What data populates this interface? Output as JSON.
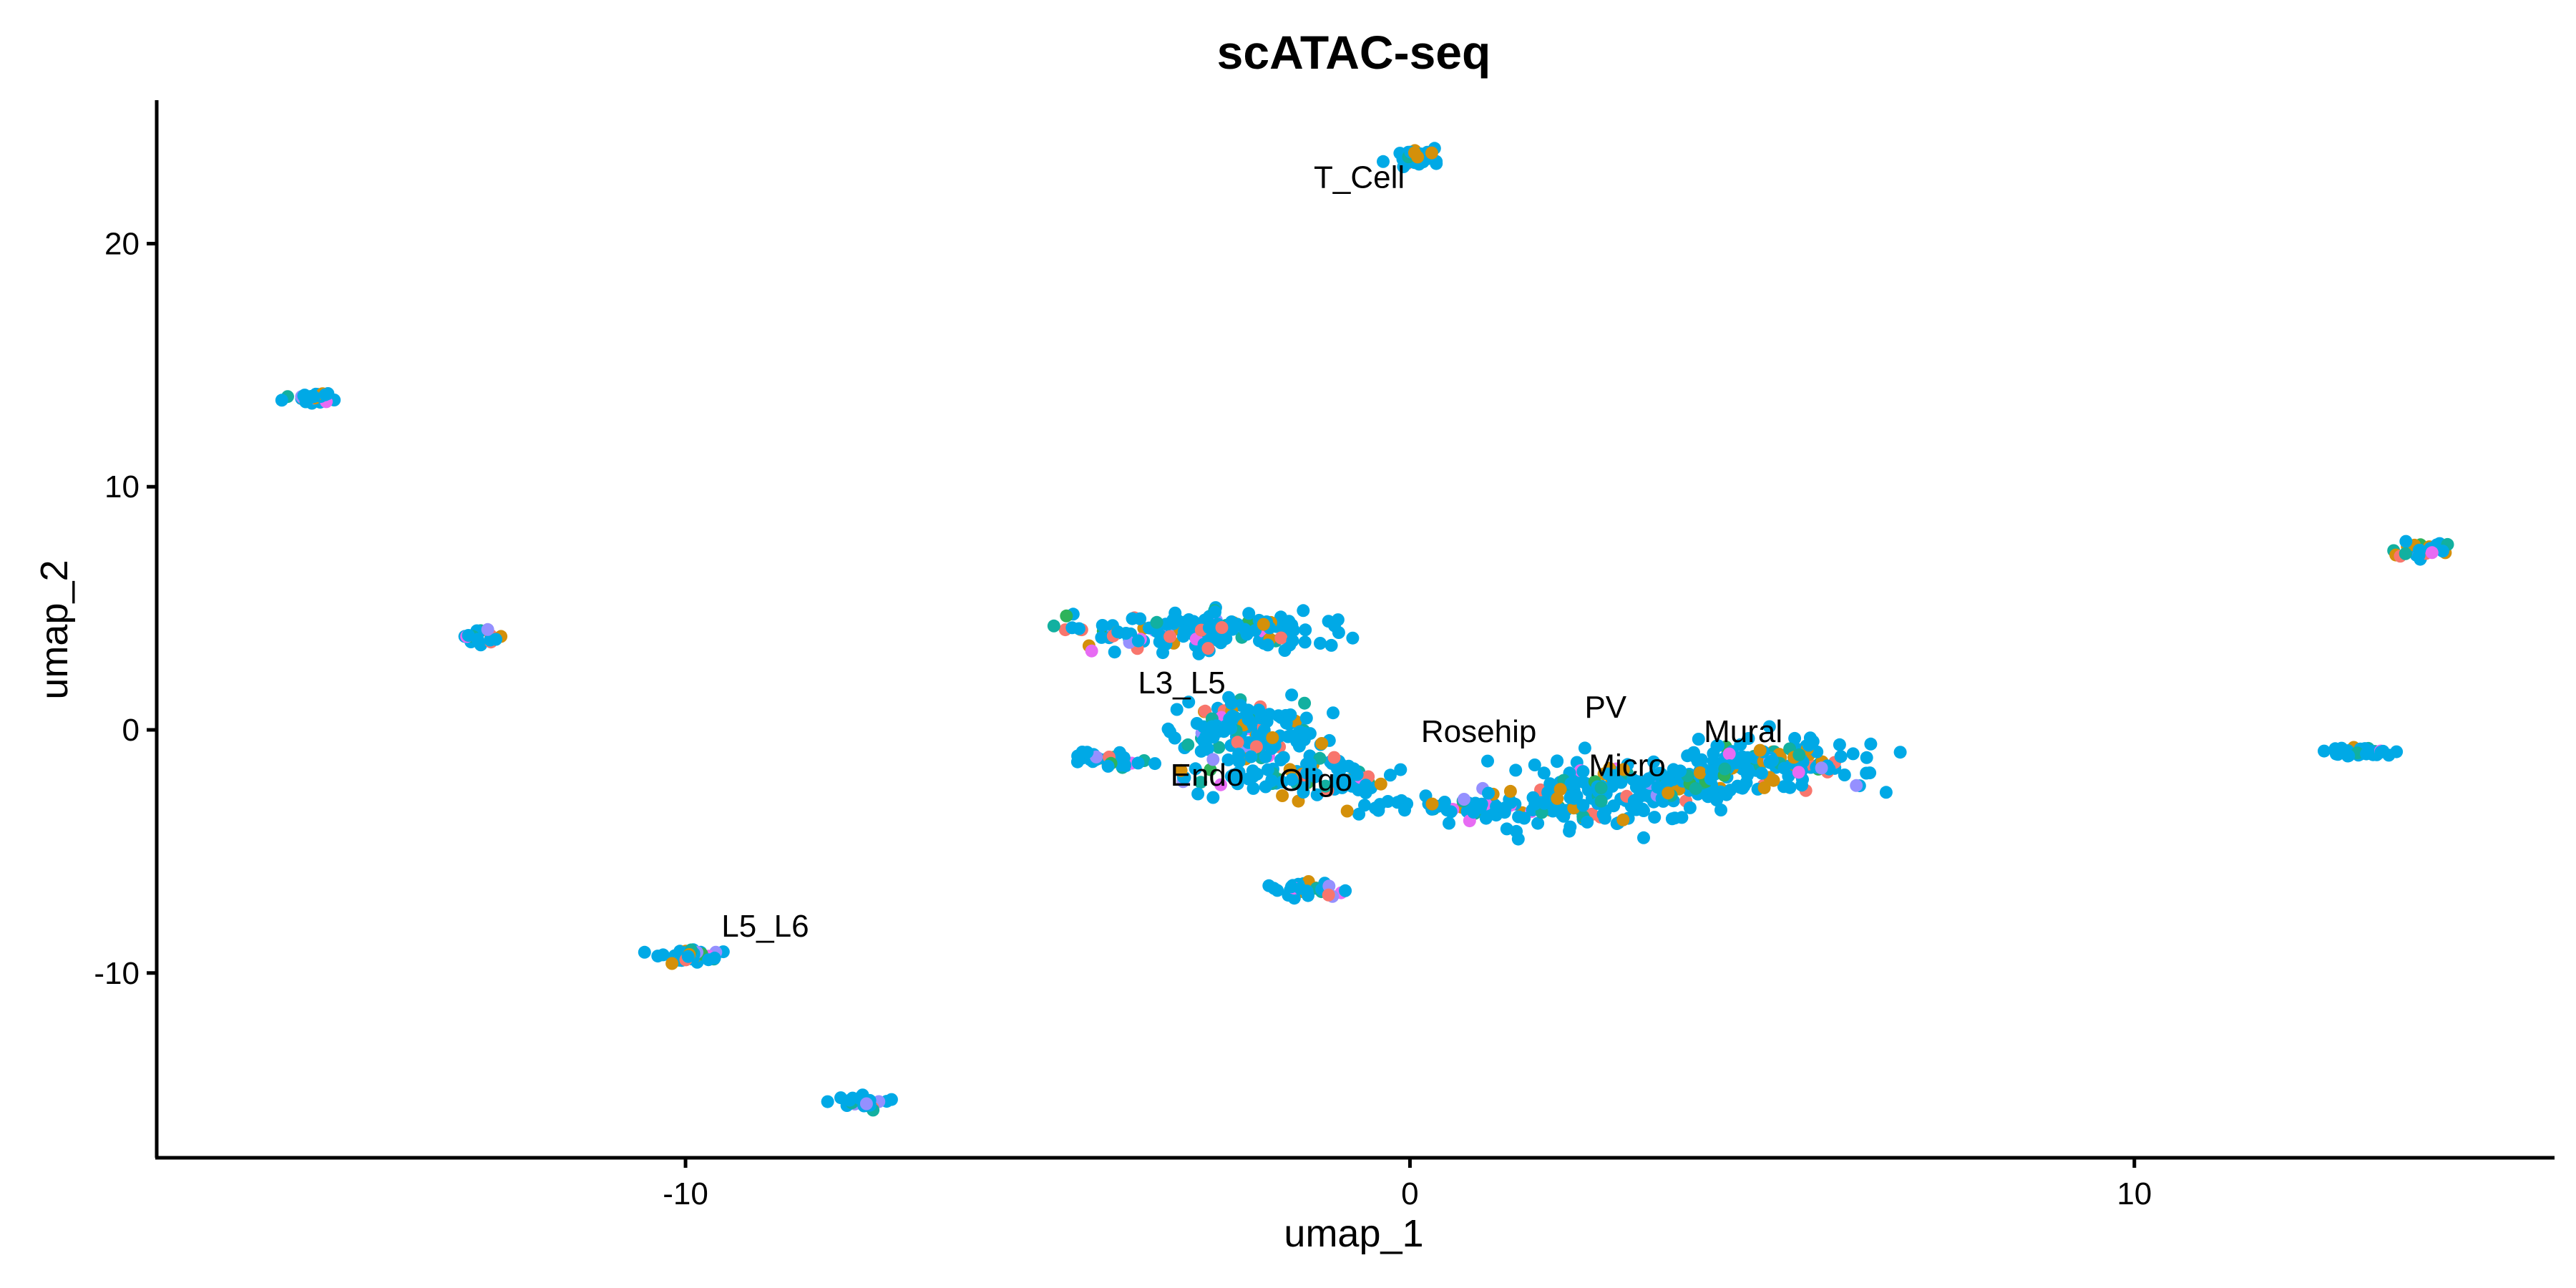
{
  "chart_data": {
    "type": "scatter",
    "title": "scATAC-seq",
    "xlabel": "umap_1",
    "ylabel": "umap_2",
    "xlim": [
      -17.3,
      15.8
    ],
    "ylim": [
      -17.6,
      25.9
    ],
    "x_ticks": [
      -10,
      0,
      10
    ],
    "y_ticks": [
      -10,
      0,
      10,
      20
    ],
    "grid": false,
    "legend": "none",
    "palette": [
      "#00A9E6",
      "#D4900A",
      "#12B0A0",
      "#F8766D",
      "#E76BF3",
      "#9590FF",
      "#2EB35A"
    ],
    "clusters": [
      {
        "label": "",
        "cx": -15.2,
        "cy": 13.7,
        "rx": 0.28,
        "ry": 0.22,
        "n": 35
      },
      {
        "label": "",
        "cx": -12.8,
        "cy": 3.8,
        "rx": 0.25,
        "ry": 0.25,
        "n": 18
      },
      {
        "label": "L5_L6",
        "cx": -9.9,
        "cy": -9.3,
        "rx": 0.35,
        "ry": 0.25,
        "n": 40
      },
      {
        "label": "",
        "cx": -7.6,
        "cy": -15.3,
        "rx": 0.3,
        "ry": 0.25,
        "n": 30
      },
      {
        "label": "T_Cell",
        "cx": 0.15,
        "cy": 23.5,
        "rx": 0.3,
        "ry": 0.35,
        "n": 35
      },
      {
        "label": "",
        "cx": 14.0,
        "cy": 7.4,
        "rx": 0.35,
        "ry": 0.3,
        "n": 35
      },
      {
        "label": "",
        "cx": 13.2,
        "cy": -0.95,
        "rx": 0.45,
        "ry": 0.18,
        "n": 30
      },
      {
        "label": "",
        "cx": -1.4,
        "cy": -6.6,
        "rx": 0.45,
        "ry": 0.25,
        "n": 35
      },
      {
        "label": "",
        "cx": -3.0,
        "cy": 4.0,
        "rx": 1.6,
        "ry": 0.7,
        "n": 150
      },
      {
        "label": "L3_L5",
        "cx": -2.2,
        "cy": 0.2,
        "rx": 0.9,
        "ry": 0.9,
        "n": 110
      },
      {
        "label": "Endo",
        "cx": -4.1,
        "cy": -1.3,
        "rx": 0.4,
        "ry": 0.35,
        "n": 30
      },
      {
        "label": "Oligo",
        "cx": -1.5,
        "cy": -1.9,
        "rx": 1.3,
        "ry": 0.7,
        "n": 100
      },
      {
        "label": "Rosehip",
        "cx": 0.9,
        "cy": -3.2,
        "rx": 1.3,
        "ry": 0.45,
        "n": 70
      },
      {
        "label": "PV",
        "cx": 2.7,
        "cy": -2.6,
        "rx": 1.1,
        "ry": 1.3,
        "n": 120
      },
      {
        "label": "Micro",
        "cx": 3.7,
        "cy": -2.3,
        "rx": 0.9,
        "ry": 0.6,
        "n": 60
      },
      {
        "label": "Mural",
        "cx": 5.1,
        "cy": -1.4,
        "rx": 1.2,
        "ry": 0.9,
        "n": 130
      }
    ],
    "labels": [
      {
        "text": "T_Cell",
        "x": -0.7,
        "y": 22.3
      },
      {
        "text": "L3_L5",
        "x": -3.15,
        "y": 1.5
      },
      {
        "text": "Rosehip",
        "x": 0.95,
        "y": -0.5
      },
      {
        "text": "PV",
        "x": 2.7,
        "y": 0.5
      },
      {
        "text": "Mural",
        "x": 4.6,
        "y": -0.5
      },
      {
        "text": "Endo",
        "x": -2.8,
        "y": -2.3
      },
      {
        "text": "Oligo",
        "x": -1.3,
        "y": -2.5
      },
      {
        "text": "Micro",
        "x": 3.0,
        "y": -1.9
      },
      {
        "text": "L5_L6",
        "x": -8.9,
        "y": -8.5
      }
    ]
  }
}
